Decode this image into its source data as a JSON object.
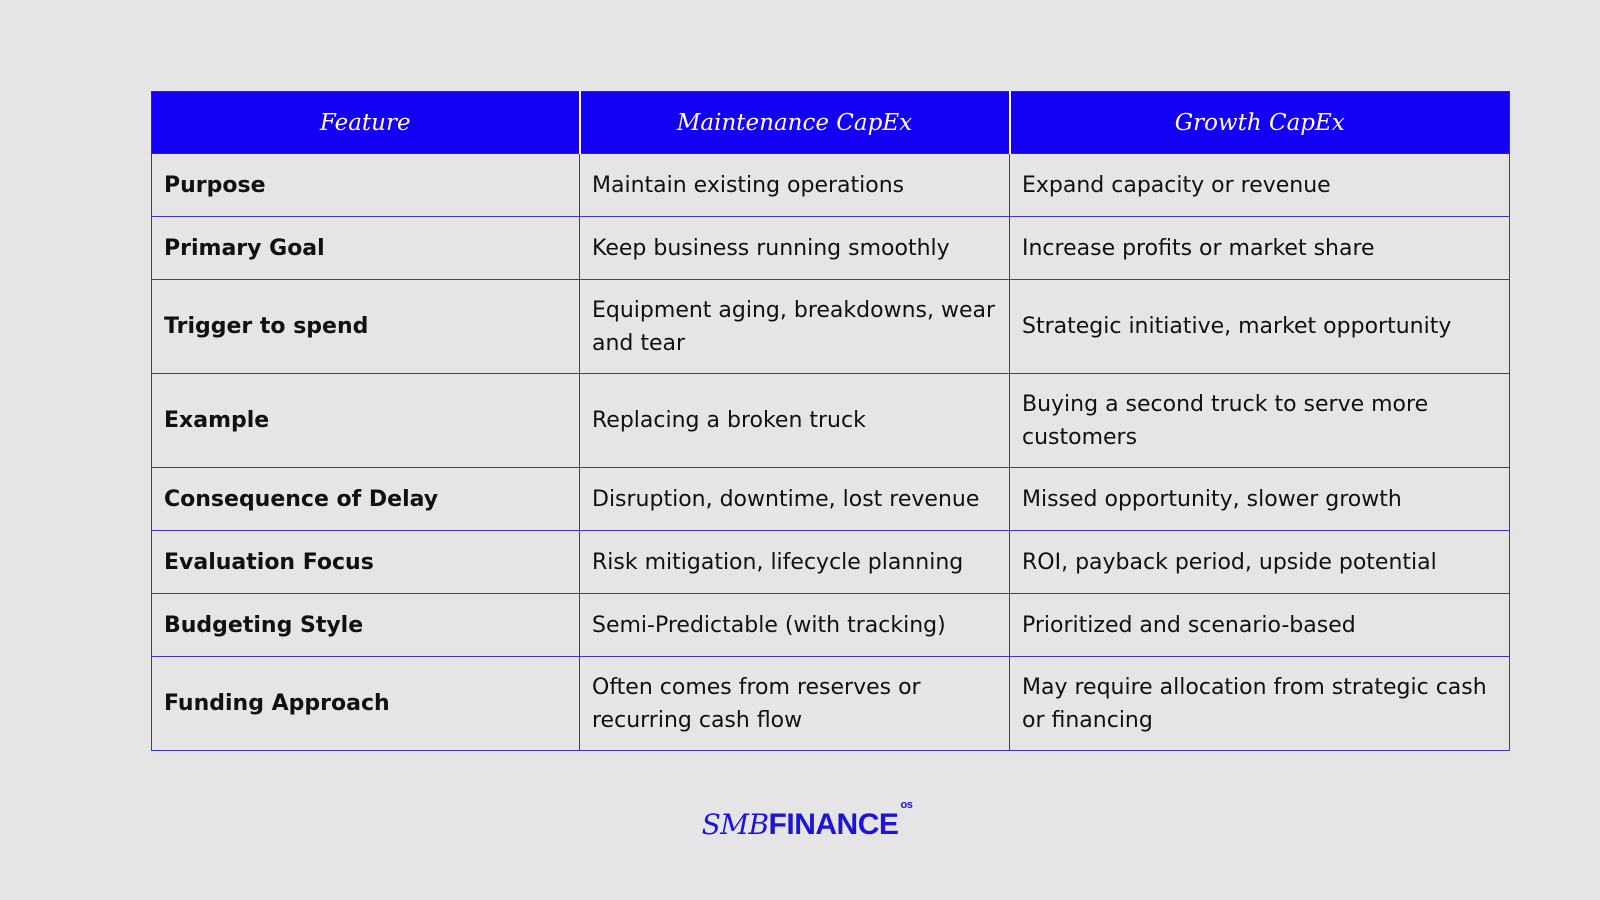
{
  "table": {
    "headers": [
      "Feature",
      "Maintenance CapEx",
      "Growth CapEx"
    ],
    "rows": [
      {
        "feature": "Purpose",
        "maintenance": "Maintain existing operations",
        "growth": "Expand capacity or revenue"
      },
      {
        "feature": "Primary Goal",
        "maintenance": "Keep business running smoothly",
        "growth": "Increase profits or market share"
      },
      {
        "feature": "Trigger to spend",
        "maintenance": "Equipment aging, breakdowns, wear and tear",
        "growth": "Strategic initiative, market opportunity"
      },
      {
        "feature": "Example",
        "maintenance": "Replacing a broken truck",
        "growth": "Buying a second truck to serve more customers"
      },
      {
        "feature": "Consequence of Delay",
        "maintenance": "Disruption, downtime, lost revenue",
        "growth": "Missed opportunity, slower growth"
      },
      {
        "feature": "Evaluation Focus",
        "maintenance": "Risk mitigation, lifecycle planning",
        "growth": "ROI, payback period, upside potential"
      },
      {
        "feature": "Budgeting Style",
        "maintenance": "Semi-Predictable (with tracking)",
        "growth": "Prioritized and scenario-based"
      },
      {
        "feature": "Funding Approach",
        "maintenance": "Often comes from reserves or recurring cash flow",
        "growth": "May require allocation from strategic cash or financing"
      }
    ]
  },
  "logo": {
    "part1": "SMB",
    "part2": "FINANCE",
    "superscript": "os"
  },
  "colors": {
    "header_bg": "#1400f5",
    "border": "#3a32c9",
    "page_bg": "#e5e5e5",
    "logo": "#1c14d9"
  }
}
